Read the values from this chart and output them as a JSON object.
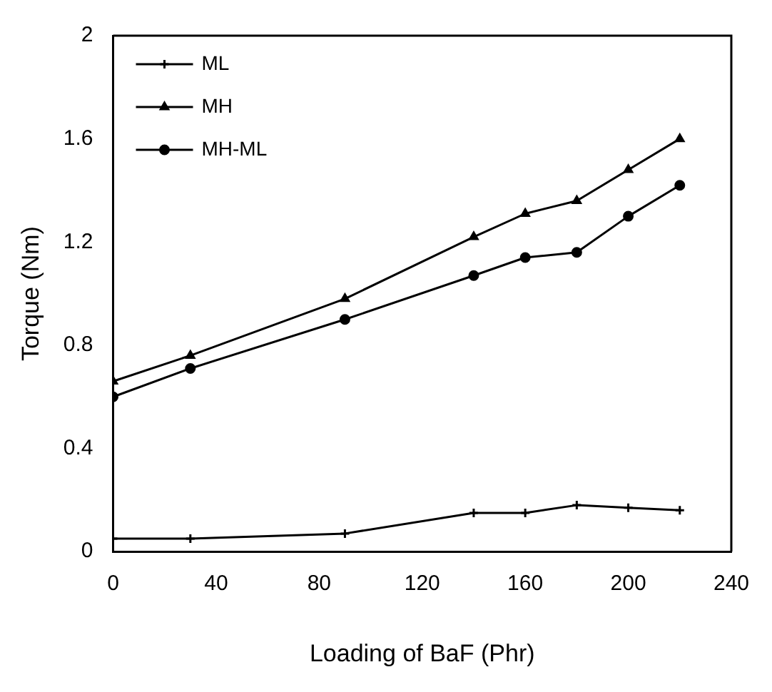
{
  "chart_data": {
    "type": "line",
    "xlabel": "Loading of BaF (Phr)",
    "ylabel": "Torque (Nm)",
    "x": [
      0,
      30,
      90,
      140,
      160,
      180,
      200,
      220
    ],
    "xlim": [
      0,
      240
    ],
    "xticks": [
      0,
      40,
      80,
      120,
      160,
      200,
      240
    ],
    "ylim": [
      0,
      2
    ],
    "yticks": [
      0,
      0.4,
      0.8,
      1.2,
      1.6,
      2
    ],
    "grid": false,
    "legend": "top left",
    "series": [
      {
        "name": "ML",
        "color": "#000000",
        "marker": "cross",
        "values": [
          0.05,
          0.05,
          0.07,
          0.15,
          0.15,
          0.18,
          0.17,
          0.16
        ]
      },
      {
        "name": "MH",
        "color": "#000000",
        "marker": "triangle",
        "values": [
          0.66,
          0.76,
          0.98,
          1.22,
          1.31,
          1.36,
          1.48,
          1.6
        ]
      },
      {
        "name": "MH-ML",
        "color": "#000000",
        "marker": "circle",
        "values": [
          0.6,
          0.71,
          0.9,
          1.07,
          1.14,
          1.16,
          1.3,
          1.42
        ]
      }
    ]
  }
}
